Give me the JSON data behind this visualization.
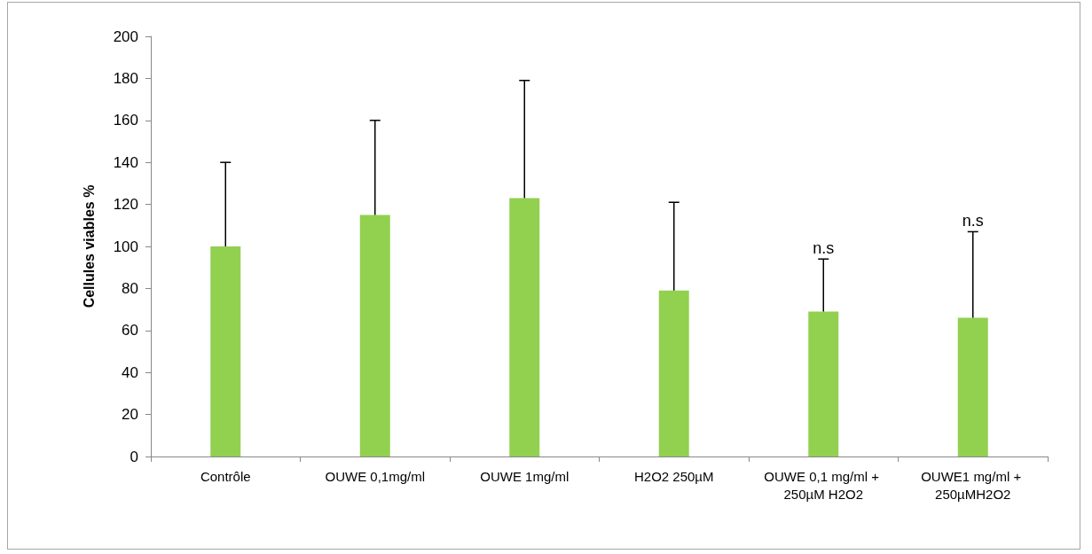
{
  "chart_data": {
    "type": "bar",
    "ylabel": "Cellules viables %",
    "categories": [
      "Contrôle",
      "OUWE 0,1mg/ml",
      "OUWE 1mg/ml",
      "H2O2 250µM",
      "OUWE 0,1 mg/ml + 250µM H2O2",
      "OUWE1 mg/ml + 250µMH2O2"
    ],
    "values": [
      100,
      115,
      123,
      79,
      69,
      66
    ],
    "errors": [
      [
        100,
        140
      ],
      [
        115,
        160
      ],
      [
        123,
        179
      ],
      [
        79,
        121
      ],
      [
        69,
        94
      ],
      [
        66,
        107
      ]
    ],
    "color": "#92d050",
    "ylim": [
      0,
      200
    ],
    "yticks": [
      0,
      20,
      40,
      60,
      80,
      100,
      120,
      140,
      160,
      180,
      200
    ],
    "grid": false,
    "annotations": [
      {
        "text": "n.s",
        "x": "OUWE 0,1 mg/ml + 250µM H2O2",
        "y": 94
      },
      {
        "text": "n.s",
        "x": "OUWE1 mg/ml + 250µMH2O2",
        "y": 107
      }
    ]
  }
}
